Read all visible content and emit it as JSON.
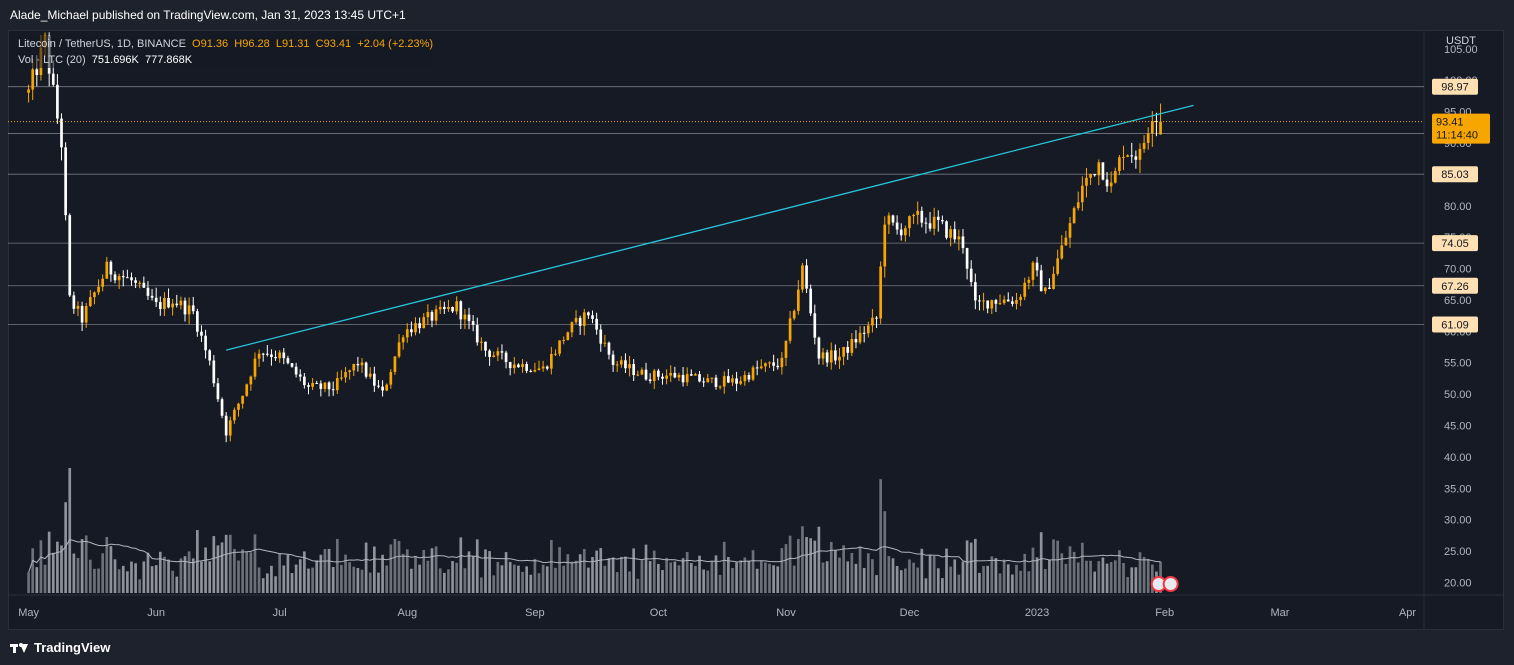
{
  "header": {
    "publisher_line": "Alade_Michael published on TradingView.com, Jan 31, 2023 13:45 UTC+1"
  },
  "legend": {
    "symbol": "Litecoin / TetherUS, 1D, BINANCE",
    "open": "O91.36",
    "high": "H96.28",
    "low": "L91.31",
    "close": "C93.41",
    "change": "+2.04 (+2.23%)",
    "vol_label": "Vol · LTC (20)",
    "vol_value": "751.696K",
    "vol_ma": "777.868K"
  },
  "footer": {
    "brand": "TradingView"
  },
  "chart_data": {
    "type": "candlestick",
    "symbol": "LTCUSDT",
    "interval": "1D",
    "exchange": "BINANCE",
    "y_unit": "USDT",
    "ylim": [
      18,
      108
    ],
    "y_ticks": [
      "20.00",
      "25.00",
      "30.00",
      "35.00",
      "40.00",
      "45.00",
      "50.00",
      "55.00",
      "60.00",
      "65.00",
      "70.00",
      "75.00",
      "80.00",
      "85.00",
      "90.00",
      "95.00",
      "100.00",
      "105.00"
    ],
    "x_labels": [
      "May",
      "Jun",
      "Jul",
      "Aug",
      "Sep",
      "Oct",
      "Nov",
      "Dec",
      "2023",
      "Feb",
      "Mar",
      "Apr"
    ],
    "date_range": [
      "2022-05-01",
      "2023-01-31"
    ],
    "horizontal_levels": [
      98.97,
      91.52,
      85.03,
      74.05,
      67.26,
      61.09
    ],
    "last_price": {
      "value": "93.41",
      "countdown": "11:14:40"
    },
    "trendline": {
      "from": [
        "2022-06-18",
        57.0
      ],
      "to": [
        "2023-02-08",
        96.0
      ],
      "color": "#26c6da"
    },
    "key_points": [
      [
        "2022-05-01",
        98
      ],
      [
        "2022-05-05",
        106
      ],
      [
        "2022-05-09",
        90
      ],
      [
        "2022-05-11",
        65
      ],
      [
        "2022-05-14",
        62
      ],
      [
        "2022-05-20",
        70
      ],
      [
        "2022-05-26",
        68
      ],
      [
        "2022-06-01",
        64
      ],
      [
        "2022-06-05",
        65
      ],
      [
        "2022-06-10",
        63
      ],
      [
        "2022-06-14",
        55
      ],
      [
        "2022-06-18",
        44
      ],
      [
        "2022-06-22",
        50
      ],
      [
        "2022-06-26",
        57
      ],
      [
        "2022-07-01",
        56
      ],
      [
        "2022-07-08",
        51
      ],
      [
        "2022-07-14",
        51
      ],
      [
        "2022-07-20",
        55
      ],
      [
        "2022-07-26",
        50
      ],
      [
        "2022-07-31",
        60
      ],
      [
        "2022-08-06",
        62
      ],
      [
        "2022-08-13",
        64
      ],
      [
        "2022-08-20",
        57
      ],
      [
        "2022-08-26",
        55
      ],
      [
        "2022-09-03",
        54
      ],
      [
        "2022-09-09",
        60
      ],
      [
        "2022-09-14",
        63
      ],
      [
        "2022-09-20",
        55
      ],
      [
        "2022-09-28",
        53
      ],
      [
        "2022-10-05",
        53
      ],
      [
        "2022-10-13",
        52
      ],
      [
        "2022-10-20",
        52
      ],
      [
        "2022-10-25",
        54
      ],
      [
        "2022-10-31",
        55
      ],
      [
        "2022-11-05",
        70
      ],
      [
        "2022-11-09",
        56
      ],
      [
        "2022-11-14",
        56
      ],
      [
        "2022-11-20",
        60
      ],
      [
        "2022-11-23",
        62
      ],
      [
        "2022-11-25",
        78
      ],
      [
        "2022-11-28",
        76
      ],
      [
        "2022-12-03",
        78
      ],
      [
        "2022-12-08",
        77
      ],
      [
        "2022-12-14",
        74
      ],
      [
        "2022-12-17",
        64
      ],
      [
        "2022-12-21",
        65
      ],
      [
        "2022-12-27",
        65
      ],
      [
        "2022-12-31",
        70
      ],
      [
        "2023-01-03",
        66
      ],
      [
        "2023-01-08",
        75
      ],
      [
        "2023-01-12",
        83
      ],
      [
        "2023-01-16",
        87
      ],
      [
        "2023-01-19",
        83
      ],
      [
        "2023-01-22",
        89
      ],
      [
        "2023-01-26",
        88
      ],
      [
        "2023-01-29",
        95
      ],
      [
        "2023-01-31",
        93.41
      ]
    ],
    "volume": {
      "ma_period": 20,
      "last": "751.696K",
      "ma_last": "777.868K"
    },
    "colors": {
      "up": "#f7a600",
      "down": "#ffffff",
      "level_line": "#9598a1",
      "level_label_bg": "#ffe0b2",
      "last_price_bg": "#f7a600",
      "background": "#161a25"
    }
  }
}
